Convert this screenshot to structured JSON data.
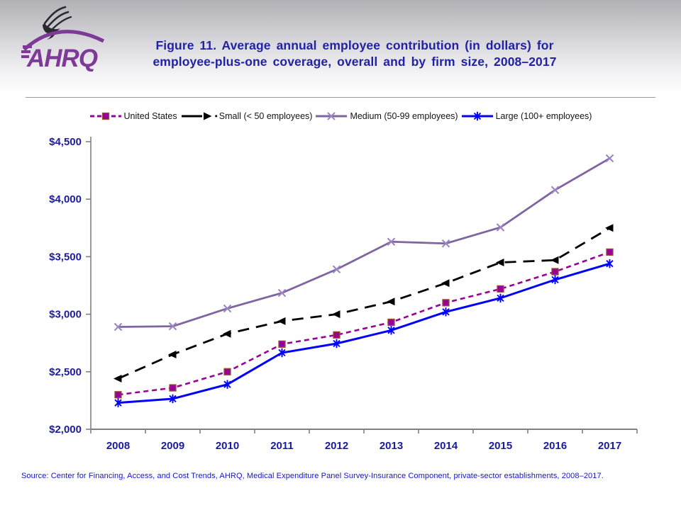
{
  "header": {
    "logo_text": "AHRQ",
    "title_line1": "Figure 11. Average annual employee contribution (in dollars) for",
    "title_line2": "employee-plus-one coverage, overall and by firm size, 2008–2017"
  },
  "chart_data": {
    "type": "line",
    "title": "Figure 11. Average annual employee contribution (in dollars) for employee-plus-one coverage, overall and by firm size, 2008–2017",
    "categories": [
      "2008",
      "2009",
      "2010",
      "2011",
      "2012",
      "2013",
      "2014",
      "2015",
      "2016",
      "2017"
    ],
    "xlabel": "",
    "ylabel": "",
    "ylim": [
      2000,
      4500
    ],
    "y_ticks": [
      {
        "label": "$2,000",
        "value": 2000
      },
      {
        "label": "$2,500",
        "value": 2500
      },
      {
        "label": "$3,000",
        "value": 3000
      },
      {
        "label": "$3,500",
        "value": 3500
      },
      {
        "label": "$4,000",
        "value": 4000
      },
      {
        "label": "$4,500",
        "value": 4500
      }
    ],
    "grid": false,
    "legend_position": "top",
    "axis_color": "#808080",
    "tick_label_color": "#1b1b9e",
    "series": [
      {
        "name": "United States",
        "color": "#990099",
        "line_dash": "7 5",
        "line_width": 2.6,
        "marker": "square",
        "marker_color": "#990099",
        "marker_stroke": "#99522e",
        "values": [
          2300,
          2360,
          2500,
          2740,
          2820,
          2930,
          3100,
          3220,
          3370,
          3540
        ]
      },
      {
        "name": "Small (< 50 employees)",
        "legend_bullet": "•",
        "color": "#000000",
        "line_dash": "16 10",
        "line_width": 2.8,
        "marker": "triangle-left",
        "marker_color": "#000000",
        "values": [
          2440,
          2650,
          2830,
          2940,
          3000,
          3110,
          3270,
          3450,
          3470,
          3750
        ]
      },
      {
        "name": "Medium (50-99 employees)",
        "color": "#8064a2",
        "line_dash": "",
        "line_width": 2.8,
        "marker": "x",
        "marker_color": "#9b85c2",
        "values": [
          2890,
          2895,
          3050,
          3185,
          3390,
          3630,
          3615,
          3755,
          4080,
          4355
        ]
      },
      {
        "name": "Large (100+ employees)",
        "color": "#0000ff",
        "line_dash": "",
        "line_width": 3,
        "marker": "asterisk",
        "marker_color": "#0000ff",
        "values": [
          2230,
          2265,
          2390,
          2665,
          2745,
          2860,
          3020,
          3140,
          3300,
          3440
        ]
      }
    ]
  },
  "footer": {
    "source": "Source: Center for Financing, Access, and Cost Trends, AHRQ, Medical Expenditure Panel Survey-Insurance Component, private-sector establishments, 2008–2017."
  }
}
